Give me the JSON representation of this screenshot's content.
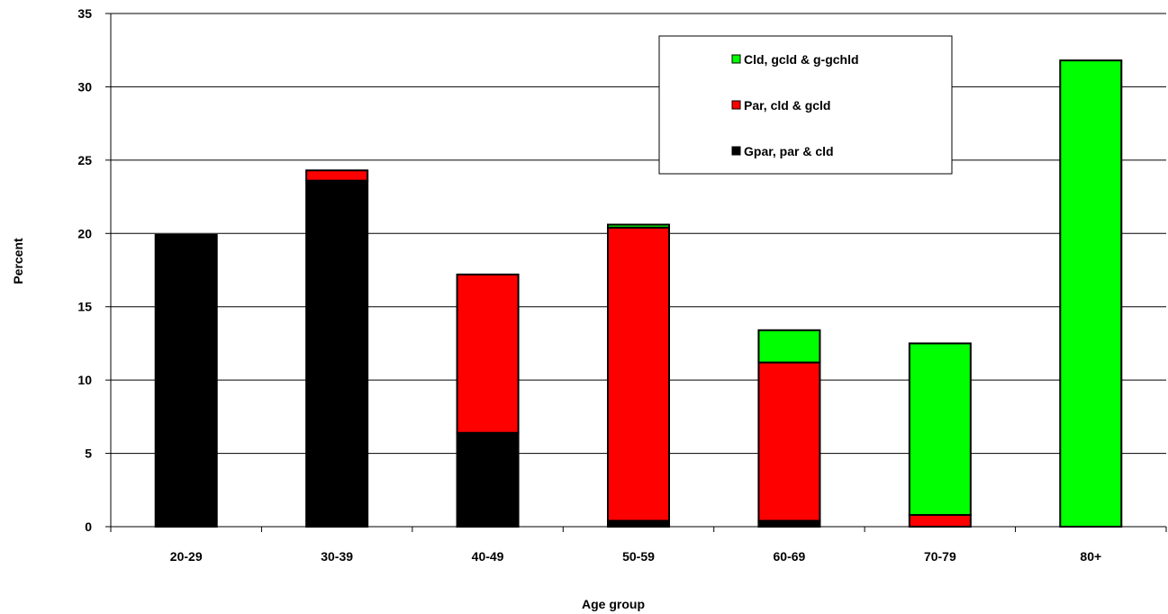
{
  "chart_data": {
    "type": "bar",
    "stacked": true,
    "title": "",
    "xlabel": "Age group",
    "ylabel": "Percent",
    "ylim": [
      0,
      35
    ],
    "yticks": [
      0,
      5,
      10,
      15,
      20,
      25,
      30,
      35
    ],
    "grid": true,
    "legend_position": "top-right",
    "categories": [
      "20-29",
      "30-39",
      "40-49",
      "50-59",
      "60-69",
      "70-79",
      "80+"
    ],
    "series": [
      {
        "name": "Gpar, par & cld",
        "color": "#000000",
        "values": [
          19.9,
          23.6,
          6.4,
          0.4,
          0.4,
          0,
          0
        ]
      },
      {
        "name": "Par, cld & gcld",
        "color": "#ff0000",
        "values": [
          0,
          0.7,
          10.8,
          20.0,
          10.8,
          0.8,
          0
        ]
      },
      {
        "name": "Cld, gcld & g-gchld",
        "color": "#00ff00",
        "values": [
          0,
          0,
          0,
          0.2,
          2.2,
          11.7,
          31.8
        ]
      }
    ]
  }
}
